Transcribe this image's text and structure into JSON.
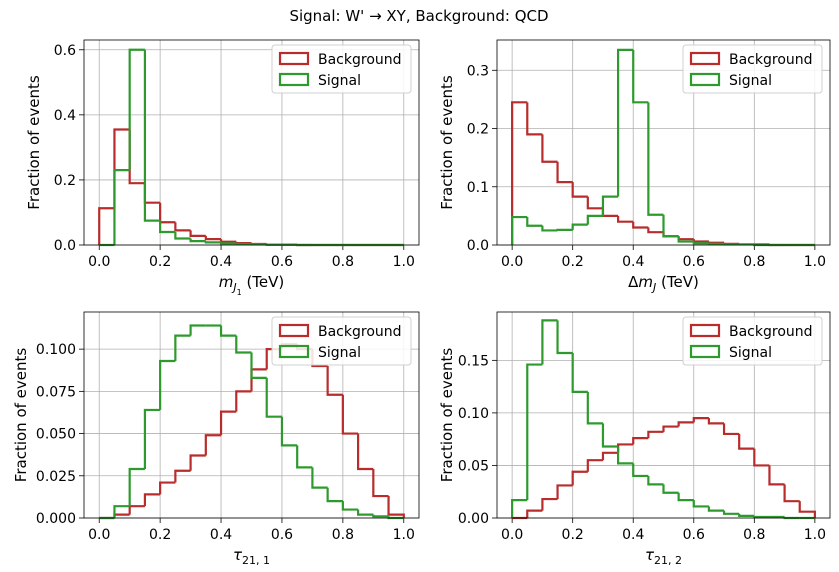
{
  "title": "Signal: W' → XY, Background: QCD",
  "chart_data": [
    {
      "type": "histogram",
      "xlabel": [
        {
          "text": "m",
          "style": "italic"
        },
        {
          "text": "J",
          "style": "sub-italic"
        },
        {
          "text": "1",
          "style": "subsub"
        },
        {
          "text": " (TeV)",
          "style": "normal"
        }
      ],
      "ylabel": "Fraction of events",
      "bins": [
        0,
        0.05,
        0.1,
        0.15,
        0.2,
        0.25,
        0.3,
        0.35,
        0.4,
        0.45,
        0.5,
        0.55,
        0.6,
        0.65,
        0.7,
        0.75,
        0.8,
        0.85,
        0.9,
        0.95,
        1.0
      ],
      "series": [
        {
          "name": "Background",
          "color": "#b82c2c",
          "values": [
            0.113,
            0.355,
            0.19,
            0.13,
            0.07,
            0.045,
            0.028,
            0.018,
            0.01,
            0.006,
            0.003,
            0.001,
            0.001,
            0,
            0,
            0,
            0,
            0,
            0,
            0
          ]
        },
        {
          "name": "Signal",
          "color": "#2e9a2e",
          "values": [
            0,
            0.23,
            0.6,
            0.075,
            0.04,
            0.02,
            0.012,
            0.008,
            0.005,
            0.003,
            0.002,
            0.001,
            0.001,
            0,
            0,
            0,
            0,
            0,
            0,
            0
          ]
        }
      ],
      "xlim": [
        -0.05,
        1.05
      ],
      "ylim": [
        0,
        0.63
      ],
      "xticks": [
        {
          "value": 0,
          "label": "0.0"
        },
        0.2,
        0.4,
        0.6,
        0.8,
        {
          "value": 1,
          "label": "1.0"
        }
      ],
      "yticks": [
        {
          "value": 0,
          "label": "0.0"
        },
        0.2,
        0.4,
        0.6
      ],
      "grid": true,
      "legend": "upper right"
    },
    {
      "type": "histogram",
      "xlabel": [
        {
          "text": "Δ",
          "style": "normal"
        },
        {
          "text": "m",
          "style": "italic"
        },
        {
          "text": "J",
          "style": "sub-italic"
        },
        {
          "text": " (TeV)",
          "style": "normal"
        }
      ],
      "ylabel": "Fraction of events",
      "bins": [
        0,
        0.05,
        0.1,
        0.15,
        0.2,
        0.25,
        0.3,
        0.35,
        0.4,
        0.45,
        0.5,
        0.55,
        0.6,
        0.65,
        0.7,
        0.75,
        0.8,
        0.85,
        0.9,
        0.95,
        1.0
      ],
      "series": [
        {
          "name": "Background",
          "color": "#b82c2c",
          "values": [
            0.245,
            0.19,
            0.143,
            0.108,
            0.083,
            0.063,
            0.05,
            0.04,
            0.03,
            0.022,
            0.015,
            0.01,
            0.006,
            0.004,
            0.002,
            0.001,
            0.001,
            0,
            0,
            0
          ]
        },
        {
          "name": "Signal",
          "color": "#2e9a2e",
          "values": [
            0.048,
            0.033,
            0.025,
            0.026,
            0.035,
            0.05,
            0.083,
            0.335,
            0.245,
            0.052,
            0.015,
            0.006,
            0.003,
            0.002,
            0.001,
            0.001,
            0,
            0,
            0,
            0
          ]
        }
      ],
      "xlim": [
        -0.05,
        1.05
      ],
      "ylim": [
        0,
        0.352
      ],
      "xticks": [
        {
          "value": 0,
          "label": "0.0"
        },
        0.2,
        0.4,
        0.6,
        0.8,
        {
          "value": 1,
          "label": "1.0"
        }
      ],
      "yticks": [
        {
          "value": 0,
          "label": "0.0"
        },
        0.1,
        0.2,
        0.3
      ],
      "grid": true,
      "legend": "upper right"
    },
    {
      "type": "histogram",
      "xlabel": [
        {
          "text": "τ",
          "style": "italic"
        },
        {
          "text": "21, 1",
          "style": "sub"
        }
      ],
      "ylabel": "Fraction of events",
      "bins": [
        0,
        0.05,
        0.1,
        0.15,
        0.2,
        0.25,
        0.3,
        0.35,
        0.4,
        0.45,
        0.5,
        0.55,
        0.6,
        0.65,
        0.7,
        0.75,
        0.8,
        0.85,
        0.9,
        0.95,
        1.0
      ],
      "series": [
        {
          "name": "Background",
          "color": "#b82c2c",
          "values": [
            0,
            0.002,
            0.007,
            0.014,
            0.021,
            0.028,
            0.037,
            0.049,
            0.063,
            0.075,
            0.088,
            0.1,
            0.103,
            0.1,
            0.09,
            0.073,
            0.05,
            0.029,
            0.013,
            0.002
          ]
        },
        {
          "name": "Signal",
          "color": "#2e9a2e",
          "values": [
            0,
            0.007,
            0.029,
            0.064,
            0.093,
            0.108,
            0.114,
            0.114,
            0.108,
            0.098,
            0.083,
            0.06,
            0.043,
            0.03,
            0.018,
            0.01,
            0.005,
            0.002,
            0.001,
            0
          ]
        }
      ],
      "xlim": [
        -0.05,
        1.05
      ],
      "ylim": [
        0,
        0.122
      ],
      "xticks": [
        {
          "value": 0,
          "label": "0.0"
        },
        0.2,
        0.4,
        0.6,
        0.8,
        {
          "value": 1,
          "label": "1.0"
        }
      ],
      "yticks": [
        {
          "value": 0,
          "label": "0.000"
        },
        0.025,
        {
          "value": 0.05,
          "label": "0.050"
        },
        0.075,
        {
          "value": 0.1,
          "label": "0.100"
        }
      ],
      "grid": true,
      "legend": "upper right"
    },
    {
      "type": "histogram",
      "xlabel": [
        {
          "text": "τ",
          "style": "italic"
        },
        {
          "text": "21, 2",
          "style": "sub"
        }
      ],
      "ylabel": "Fraction of events",
      "bins": [
        0,
        0.05,
        0.1,
        0.15,
        0.2,
        0.25,
        0.3,
        0.35,
        0.4,
        0.45,
        0.5,
        0.55,
        0.6,
        0.65,
        0.7,
        0.75,
        0.8,
        0.85,
        0.9,
        0.95,
        1.0
      ],
      "series": [
        {
          "name": "Background",
          "color": "#b82c2c",
          "values": [
            0,
            0.007,
            0.018,
            0.031,
            0.044,
            0.055,
            0.062,
            0.07,
            0.076,
            0.082,
            0.087,
            0.091,
            0.095,
            0.09,
            0.08,
            0.066,
            0.05,
            0.032,
            0.016,
            0.006
          ]
        },
        {
          "name": "Signal",
          "color": "#2e9a2e",
          "values": [
            0.017,
            0.146,
            0.188,
            0.157,
            0.12,
            0.09,
            0.068,
            0.052,
            0.04,
            0.032,
            0.024,
            0.017,
            0.011,
            0.007,
            0.004,
            0.002,
            0.001,
            0.001,
            0,
            0
          ]
        }
      ],
      "xlim": [
        -0.05,
        1.05
      ],
      "ylim": [
        0,
        0.196
      ],
      "xticks": [
        {
          "value": 0,
          "label": "0.0"
        },
        0.2,
        0.4,
        0.6,
        0.8,
        {
          "value": 1,
          "label": "1.0"
        }
      ],
      "yticks": [
        {
          "value": 0,
          "label": "0.00"
        },
        0.05,
        {
          "value": 0.1,
          "label": "0.10"
        },
        0.15
      ],
      "grid": true,
      "legend": "upper right"
    }
  ]
}
